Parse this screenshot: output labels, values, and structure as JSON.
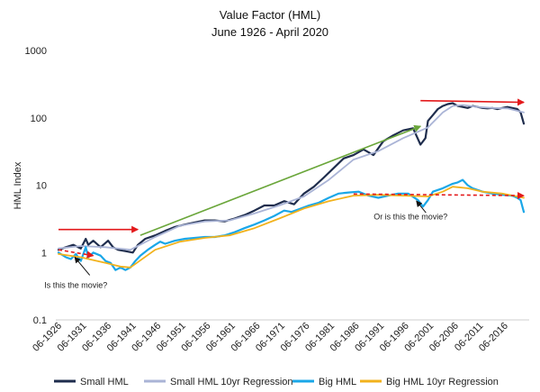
{
  "chart_data": {
    "type": "line",
    "title": "Value Factor (HML)",
    "subtitle": "June 1926 - April 2020",
    "ylabel": "HML Index",
    "xlabel": "",
    "yscale": "log",
    "ylim": [
      0.1,
      1000
    ],
    "xlim": [
      1926.5,
      2020.33
    ],
    "y_ticks": [
      {
        "value": 1000,
        "label": "1000"
      },
      {
        "value": 100,
        "label": "100"
      },
      {
        "value": 10,
        "label": "10"
      },
      {
        "value": 1,
        "label": "1"
      },
      {
        "value": 0.1,
        "label": "0.1"
      }
    ],
    "x_ticks": [
      {
        "value": 1926.5,
        "label": "06-1926"
      },
      {
        "value": 1931.5,
        "label": "06-1931"
      },
      {
        "value": 1936.5,
        "label": "06-1936"
      },
      {
        "value": 1941.5,
        "label": "06-1941"
      },
      {
        "value": 1946.5,
        "label": "06-1946"
      },
      {
        "value": 1951.5,
        "label": "06-1951"
      },
      {
        "value": 1956.5,
        "label": "06-1956"
      },
      {
        "value": 1961.5,
        "label": "06-1961"
      },
      {
        "value": 1966.5,
        "label": "06-1966"
      },
      {
        "value": 1971.5,
        "label": "06-1971"
      },
      {
        "value": 1976.5,
        "label": "06-1976"
      },
      {
        "value": 1981.5,
        "label": "06-1981"
      },
      {
        "value": 1986.5,
        "label": "06-1986"
      },
      {
        "value": 1991.5,
        "label": "06-1991"
      },
      {
        "value": 1996.5,
        "label": "06-1996"
      },
      {
        "value": 2001.5,
        "label": "06-2001"
      },
      {
        "value": 2006.5,
        "label": "06-2006"
      },
      {
        "value": 2011.5,
        "label": "06-2011"
      },
      {
        "value": 2016.5,
        "label": "06-2016"
      }
    ],
    "series": [
      {
        "name": "Small HML",
        "color": "#1f2d4d",
        "width": 2.2,
        "x": [
          1926.5,
          1928,
          1929.5,
          1931,
          1932,
          1932.5,
          1933.5,
          1935,
          1936.5,
          1937.5,
          1938.5,
          1940,
          1941.5,
          1942.5,
          1944,
          1946,
          1948,
          1950,
          1952,
          1954,
          1956,
          1958,
          1960,
          1962,
          1964,
          1966,
          1968,
          1970,
          1972,
          1974,
          1976,
          1978,
          1980,
          1982,
          1984,
          1986,
          1988,
          1990,
          1992,
          1994,
          1996,
          1998,
          1999.5,
          2000.5,
          2001,
          2002,
          2003,
          2004,
          2005,
          2006,
          2007,
          2008,
          2009,
          2010,
          2011,
          2012,
          2013,
          2014,
          2015,
          2016,
          2017,
          2018,
          2019,
          2019.7,
          2020.33
        ],
        "values": [
          1.1,
          1.2,
          1.3,
          1.15,
          1.6,
          1.3,
          1.5,
          1.2,
          1.5,
          1.2,
          1.1,
          1.05,
          1.0,
          1.3,
          1.6,
          1.8,
          2.1,
          2.4,
          2.6,
          2.8,
          3.0,
          3.0,
          2.9,
          3.2,
          3.6,
          4.2,
          5.0,
          5.0,
          5.8,
          5.2,
          7.5,
          9.5,
          13,
          18,
          25,
          28,
          34,
          28,
          45,
          55,
          65,
          70,
          40,
          50,
          90,
          110,
          135,
          150,
          160,
          165,
          150,
          145,
          140,
          150,
          145,
          140,
          138,
          140,
          135,
          140,
          145,
          140,
          135,
          120,
          82
        ]
      },
      {
        "name": "Small HML 10yr Regression",
        "color": "#aab4d6",
        "width": 1.8,
        "x": [
          1926.5,
          1931,
          1936,
          1941,
          1946,
          1951,
          1956,
          1961,
          1966,
          1971,
          1976,
          1981,
          1986,
          1991,
          1996,
          2001,
          2004,
          2006,
          2008,
          2011,
          2014,
          2017,
          2020.33
        ],
        "values": [
          1.15,
          1.25,
          1.2,
          1.1,
          1.7,
          2.5,
          2.9,
          3.0,
          3.8,
          5.0,
          6.8,
          12,
          24,
          32,
          50,
          72,
          120,
          150,
          155,
          145,
          140,
          138,
          120
        ]
      },
      {
        "name": "Big HML",
        "color": "#1aa7e8",
        "width": 2.2,
        "x": [
          1926.5,
          1928,
          1929,
          1930,
          1931,
          1932,
          1932.5,
          1933.5,
          1935,
          1936,
          1937,
          1938,
          1939,
          1940,
          1941,
          1942,
          1943,
          1944.5,
          1946,
          1947,
          1948,
          1950,
          1952,
          1954,
          1956,
          1958,
          1960,
          1962,
          1964,
          1966,
          1968,
          1970,
          1972,
          1973.5,
          1975,
          1977,
          1979,
          1981,
          1983,
          1985,
          1987,
          1989,
          1991,
          1993,
          1995,
          1997,
          1999,
          2000,
          2001,
          2002,
          2004,
          2006,
          2007,
          2008,
          2009,
          2010,
          2011,
          2012,
          2014,
          2016,
          2018,
          2019,
          2019.7,
          2020.33
        ],
        "values": [
          1.0,
          0.85,
          0.8,
          0.95,
          0.75,
          1.2,
          0.85,
          1.0,
          0.9,
          0.75,
          0.7,
          0.55,
          0.6,
          0.55,
          0.6,
          0.75,
          0.9,
          1.1,
          1.3,
          1.45,
          1.35,
          1.5,
          1.6,
          1.65,
          1.7,
          1.7,
          1.8,
          2.0,
          2.3,
          2.6,
          3.0,
          3.5,
          4.2,
          4.0,
          4.4,
          5.0,
          5.5,
          6.5,
          7.5,
          7.8,
          8.0,
          7.0,
          6.5,
          7.0,
          7.5,
          7.5,
          6.0,
          4.8,
          6.0,
          8.0,
          9.0,
          10.5,
          11,
          12,
          10,
          9,
          8.5,
          8.0,
          7.5,
          7.2,
          7.0,
          6.5,
          6.0,
          4.0
        ]
      },
      {
        "name": "Big HML 10yr Regression",
        "color": "#f2b21c",
        "width": 1.8,
        "x": [
          1926.5,
          1931,
          1936,
          1939,
          1941,
          1946,
          1951,
          1956,
          1961,
          1966,
          1971,
          1976,
          1981,
          1986,
          1991,
          1996,
          2001,
          2004,
          2006,
          2009,
          2012,
          2016,
          2020.33
        ],
        "values": [
          0.95,
          0.85,
          0.7,
          0.62,
          0.6,
          1.1,
          1.45,
          1.65,
          1.8,
          2.3,
          3.2,
          4.5,
          5.8,
          7.0,
          7.2,
          7.0,
          6.8,
          8.0,
          9.5,
          9.0,
          8.0,
          7.5,
          6.5
        ]
      }
    ],
    "annotations": [
      {
        "text": "Is this the movie?",
        "x": 1930,
        "y": 0.3
      },
      {
        "text": "Or is this the movie?",
        "x": 1997.5,
        "y": 3.1
      }
    ],
    "arrows": [
      {
        "color": "#e3191b",
        "style": "solid",
        "x1": 1926.5,
        "y1": 2.2,
        "x2": 1942.5,
        "y2": 2.2
      },
      {
        "color": "#e3191b",
        "style": "dashed",
        "x1": 1926.5,
        "y1": 1.1,
        "x2": 1933.5,
        "y2": 0.9
      },
      {
        "color": "#e3191b",
        "style": "solid",
        "x1": 1999.5,
        "y1": 180,
        "x2": 2020.33,
        "y2": 170
      },
      {
        "color": "#e3191b",
        "style": "dashed",
        "x1": 1986,
        "y1": 7.4,
        "x2": 2020.33,
        "y2": 7.0
      },
      {
        "color": "#6aa63a",
        "style": "solid",
        "x1": 1943,
        "y1": 1.8,
        "x2": 1999.5,
        "y2": 75
      },
      {
        "color": "#111111",
        "style": "solid",
        "x1": 1932.8,
        "y1": 0.46,
        "x2": 1929.8,
        "y2": 0.85
      },
      {
        "color": "#111111",
        "style": "solid",
        "x1": 2000.6,
        "y1": 3.9,
        "x2": 1998.7,
        "y2": 5.8
      }
    ],
    "legend": {
      "position": "bottom"
    },
    "grid": false
  }
}
